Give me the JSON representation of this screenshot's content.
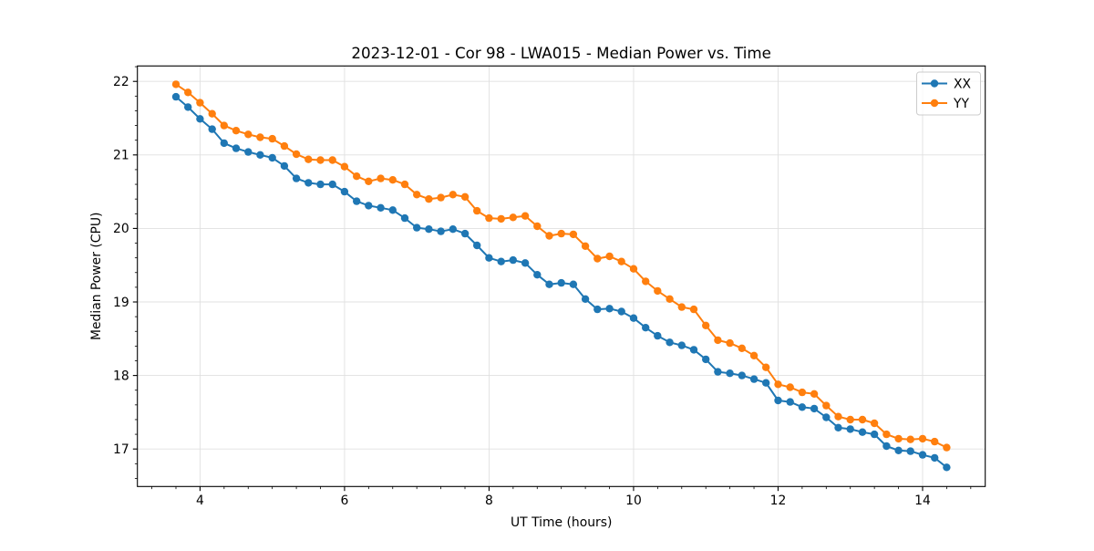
{
  "figure": {
    "background": "#ffffff",
    "frame_color": "#000000",
    "grid_color": "#e0e0e0"
  },
  "chart_data": {
    "type": "line",
    "title": "2023-12-01 - Cor 98 - LWA015 - Median Power vs. Time",
    "xlabel": "UT Time (hours)",
    "ylabel": "Median Power (CPU)",
    "xlim": [
      3.133,
      14.867
    ],
    "ylim": [
      16.49,
      22.21
    ],
    "xticks": [
      4,
      6,
      8,
      10,
      12,
      14
    ],
    "yticks": [
      17,
      18,
      19,
      20,
      21,
      22
    ],
    "x_minor_step": 0.33333,
    "y_minor_step": 0.2,
    "grid": true,
    "legend_position": "upper right",
    "marker": "o",
    "x": [
      3.667,
      3.833,
      4.0,
      4.167,
      4.333,
      4.5,
      4.667,
      4.833,
      5.0,
      5.167,
      5.333,
      5.5,
      5.667,
      5.833,
      6.0,
      6.167,
      6.333,
      6.5,
      6.667,
      6.833,
      7.0,
      7.167,
      7.333,
      7.5,
      7.667,
      7.833,
      8.0,
      8.167,
      8.333,
      8.5,
      8.667,
      8.833,
      9.0,
      9.167,
      9.333,
      9.5,
      9.667,
      9.833,
      10.0,
      10.167,
      10.333,
      10.5,
      10.667,
      10.833,
      11.0,
      11.167,
      11.333,
      11.5,
      11.667,
      11.833,
      12.0,
      12.167,
      12.333,
      12.5,
      12.667,
      12.833,
      13.0,
      13.167,
      13.333,
      13.5,
      13.667,
      13.833,
      14.0,
      14.167,
      14.333
    ],
    "series": [
      {
        "name": "XX",
        "color": "#1f77b4",
        "values": [
          21.79,
          21.65,
          21.49,
          21.35,
          21.16,
          21.09,
          21.04,
          21.0,
          20.96,
          20.85,
          20.68,
          20.62,
          20.6,
          20.6,
          20.5,
          20.37,
          20.31,
          20.28,
          20.25,
          20.14,
          20.01,
          19.99,
          19.96,
          19.99,
          19.93,
          19.77,
          19.6,
          19.55,
          19.57,
          19.53,
          19.37,
          19.24,
          19.26,
          19.24,
          19.04,
          18.9,
          18.91,
          18.87,
          18.78,
          18.65,
          18.54,
          18.45,
          18.41,
          18.35,
          18.22,
          18.05,
          18.03,
          18.0,
          17.95,
          17.9,
          17.66,
          17.64,
          17.57,
          17.55,
          17.43,
          17.29,
          17.27,
          17.23,
          17.2,
          17.04,
          16.98,
          16.97,
          16.92,
          16.88,
          16.75
        ]
      },
      {
        "name": "YY",
        "color": "#ff7f0e",
        "values": [
          21.96,
          21.85,
          21.71,
          21.56,
          21.4,
          21.33,
          21.28,
          21.24,
          21.22,
          21.12,
          21.01,
          20.94,
          20.93,
          20.93,
          20.84,
          20.71,
          20.64,
          20.68,
          20.66,
          20.6,
          20.46,
          20.4,
          20.42,
          20.46,
          20.43,
          20.24,
          20.14,
          20.13,
          20.15,
          20.17,
          20.03,
          19.9,
          19.93,
          19.92,
          19.76,
          19.59,
          19.62,
          19.55,
          19.45,
          19.28,
          19.15,
          19.04,
          18.93,
          18.9,
          18.68,
          18.48,
          18.44,
          18.37,
          18.27,
          18.11,
          17.88,
          17.84,
          17.77,
          17.75,
          17.59,
          17.44,
          17.4,
          17.4,
          17.35,
          17.2,
          17.14,
          17.13,
          17.14,
          17.1,
          17.02
        ]
      }
    ]
  },
  "legend": {
    "items": [
      "XX",
      "YY"
    ]
  }
}
